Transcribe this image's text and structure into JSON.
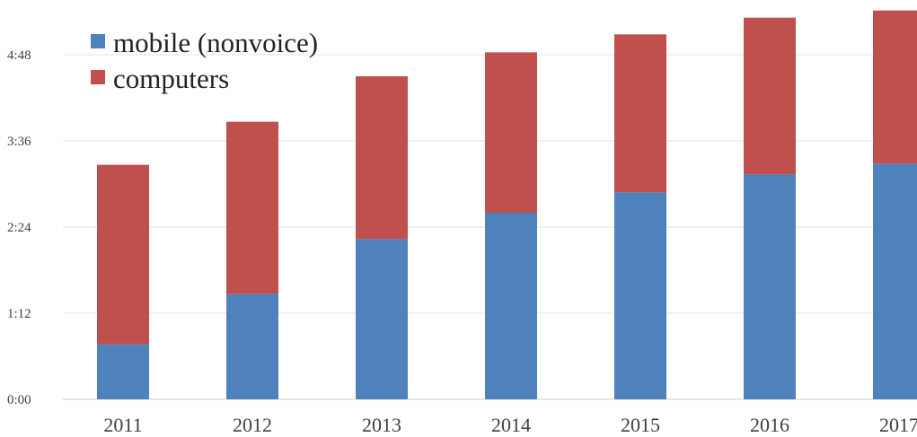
{
  "chart_data": {
    "type": "bar",
    "stacked": true,
    "categories": [
      "2011",
      "2012",
      "2013",
      "2014",
      "2015",
      "2016",
      "2017"
    ],
    "y_tick_labels": [
      "0:00",
      "1:12",
      "2:24",
      "3:36",
      "4:48"
    ],
    "y_tick_values_minutes": [
      0,
      72,
      144,
      216,
      288
    ],
    "value_unit": "minutes per day",
    "ylim": [
      0,
      324
    ],
    "grid": true,
    "legend_position": "top-left",
    "series": [
      {
        "name": "mobile (nonvoice)",
        "color": "#4f81bd",
        "values": [
          46,
          88,
          134,
          156,
          173,
          188,
          197
        ]
      },
      {
        "name": "computers",
        "color": "#c0504d",
        "values": [
          150,
          144,
          136,
          134,
          132,
          131,
          128
        ]
      }
    ]
  }
}
